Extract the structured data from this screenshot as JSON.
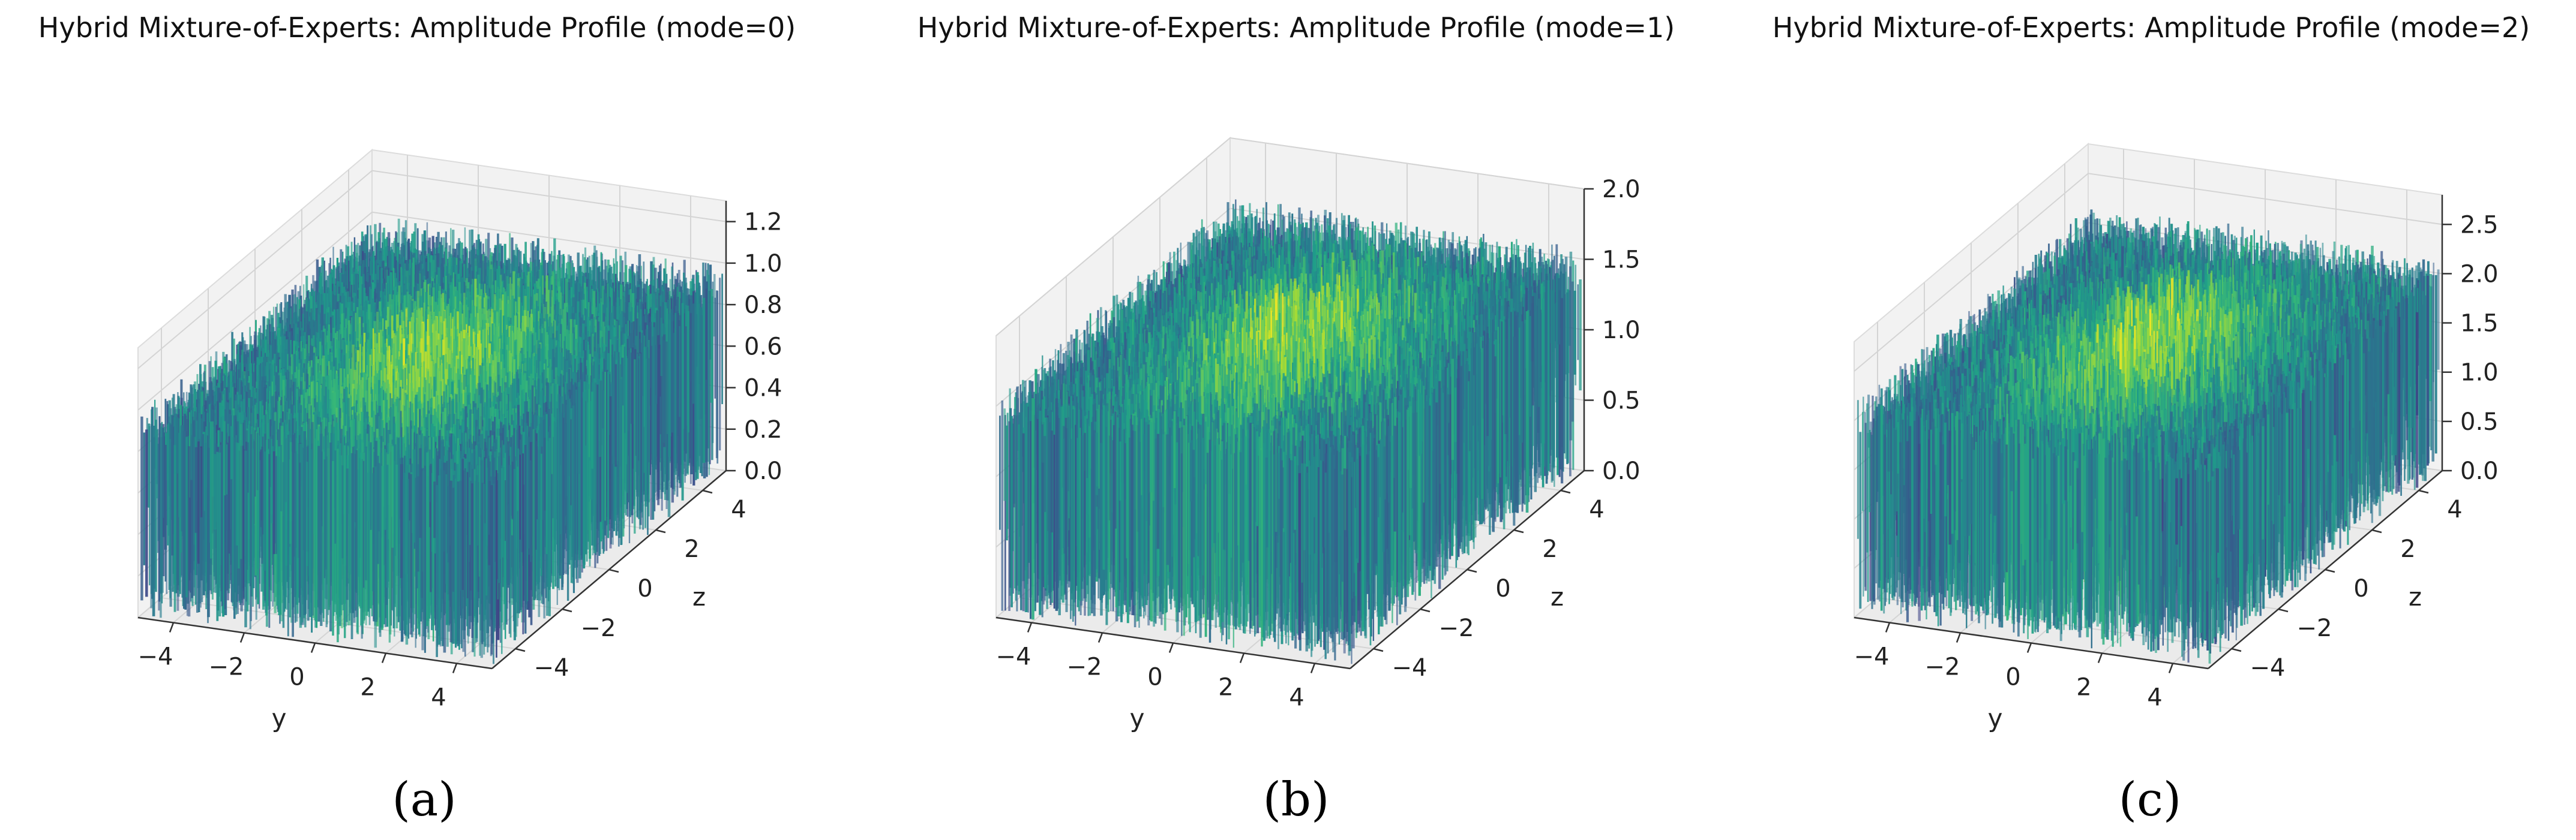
{
  "chart_data": [
    {
      "type": "surface3d",
      "title": "Hybrid Mixture-of-Experts: Amplitude Profile (mode=0)",
      "caption": "(a)",
      "xlabel": "y",
      "ylabel": "z",
      "zlabel": "",
      "x_ticks": [
        "−4",
        "−2",
        "0",
        "2",
        "4"
      ],
      "y_ticks": [
        "−4",
        "−2",
        "0",
        "2",
        "4"
      ],
      "z_ticks": [
        "0.0",
        "0.2",
        "0.4",
        "0.6",
        "0.8",
        "1.0",
        "1.2"
      ],
      "x_range": [
        -5,
        5
      ],
      "y_range": [
        -5,
        5
      ],
      "z_range": [
        0,
        1.3
      ],
      "surface_level": 1.0,
      "peak_level": 1.2,
      "colormap": "viridis",
      "grid": true
    },
    {
      "type": "surface3d",
      "title": "Hybrid Mixture-of-Experts: Amplitude Profile (mode=1)",
      "caption": "(b)",
      "xlabel": "y",
      "ylabel": "z",
      "zlabel": "",
      "x_ticks": [
        "−4",
        "−2",
        "0",
        "2",
        "4"
      ],
      "y_ticks": [
        "−4",
        "−2",
        "0",
        "2",
        "4"
      ],
      "z_ticks": [
        "0.0",
        "0.5",
        "1.0",
        "1.5",
        "2.0"
      ],
      "x_range": [
        -5,
        5
      ],
      "y_range": [
        -5,
        5
      ],
      "z_range": [
        0,
        2.0
      ],
      "surface_level": 1.6,
      "peak_level": 1.9,
      "colormap": "viridis",
      "grid": true
    },
    {
      "type": "surface3d",
      "title": "Hybrid Mixture-of-Experts: Amplitude Profile (mode=2)",
      "caption": "(c)",
      "xlabel": "y",
      "ylabel": "z",
      "zlabel": "",
      "x_ticks": [
        "−4",
        "−2",
        "0",
        "2",
        "4"
      ],
      "y_ticks": [
        "−4",
        "−2",
        "0",
        "2",
        "4"
      ],
      "z_ticks": [
        "0.0",
        "0.5",
        "1.0",
        "1.5",
        "2.0",
        "2.5"
      ],
      "x_range": [
        -5,
        5
      ],
      "y_range": [
        -5,
        5
      ],
      "z_range": [
        0,
        2.8
      ],
      "surface_level": 2.2,
      "peak_level": 2.7,
      "colormap": "viridis",
      "grid": true
    }
  ]
}
